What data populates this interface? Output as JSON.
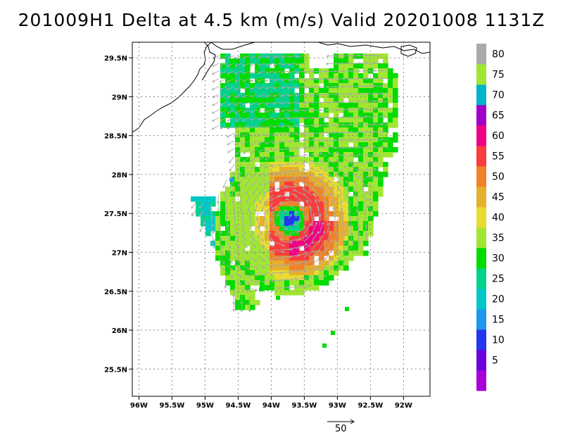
{
  "title": "201009H1 Delta at 4.5 km (m/s) Valid 20201008 1131Z",
  "map": {
    "lon_range": [
      -96.1,
      -91.6
    ],
    "lat_range": [
      25.15,
      29.7
    ],
    "lon_ticks": [
      {
        "value": -96,
        "label": "96W"
      },
      {
        "value": -95.5,
        "label": "95.5W"
      },
      {
        "value": -95,
        "label": "95W"
      },
      {
        "value": -94.5,
        "label": "94.5W"
      },
      {
        "value": -94,
        "label": "94W"
      },
      {
        "value": -93.5,
        "label": "93.5W"
      },
      {
        "value": -93,
        "label": "93W"
      },
      {
        "value": -92.5,
        "label": "92.5W"
      },
      {
        "value": -92,
        "label": "92W"
      }
    ],
    "lat_ticks": [
      {
        "value": 25.5,
        "label": "25.5N"
      },
      {
        "value": 26,
        "label": "26N"
      },
      {
        "value": 26.5,
        "label": "26.5N"
      },
      {
        "value": 27,
        "label": "27N"
      },
      {
        "value": 27.5,
        "label": "27.5N"
      },
      {
        "value": 28,
        "label": "28N"
      },
      {
        "value": 28.5,
        "label": "28.5N"
      },
      {
        "value": 29,
        "label": "29N"
      },
      {
        "value": 29.5,
        "label": "29.5N"
      }
    ],
    "gridlines": "dotted",
    "storm_center": {
      "lon": -93.75,
      "lat": 27.45
    }
  },
  "colorbar": {
    "levels": [
      {
        "label": "",
        "color": "#a800d8"
      },
      {
        "label": "5",
        "color": "#6e00dc"
      },
      {
        "label": "10",
        "color": "#2436f0"
      },
      {
        "label": "15",
        "color": "#1e96f0"
      },
      {
        "label": "20",
        "color": "#00c8c8"
      },
      {
        "label": "25",
        "color": "#00d28c"
      },
      {
        "label": "30",
        "color": "#00dc00"
      },
      {
        "label": "35",
        "color": "#a0e632"
      },
      {
        "label": "40",
        "color": "#e6dc32"
      },
      {
        "label": "45",
        "color": "#e6af2d"
      },
      {
        "label": "50",
        "color": "#f08228"
      },
      {
        "label": "55",
        "color": "#fa3c3c"
      },
      {
        "label": "60",
        "color": "#f00082"
      },
      {
        "label": "65",
        "color": "#a000c8"
      },
      {
        "label": "70",
        "color": "#00b4c8"
      },
      {
        "label": "75",
        "color": "#a0e632"
      },
      {
        "label": "80",
        "color": "#aaaaaa"
      }
    ]
  },
  "reference_vector": {
    "label": "50"
  },
  "colors": {
    "vector": "#aaaaaa",
    "coast": "#000000",
    "grid": "#888888"
  }
}
